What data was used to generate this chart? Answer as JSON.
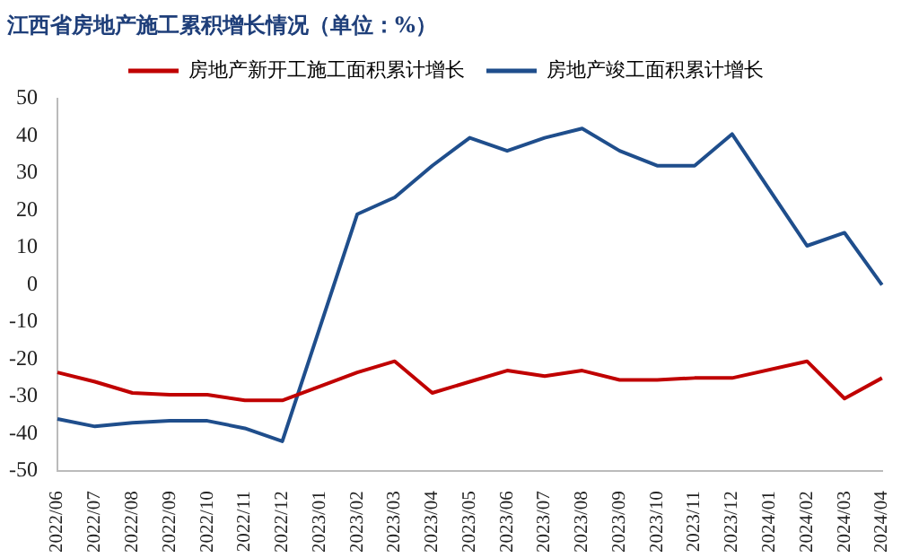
{
  "chart_data": {
    "type": "line",
    "title": "江西省房地产施工累积增长情况（单位：%）",
    "categories": [
      "2022/06",
      "2022/07",
      "2022/08",
      "2022/09",
      "2022/10",
      "2022/11",
      "2022/12",
      "2023/01",
      "2023/02",
      "2023/03",
      "2023/04",
      "2023/05",
      "2023/06",
      "2023/07",
      "2023/08",
      "2023/09",
      "2023/10",
      "2023/11",
      "2023/12",
      "2024/01",
      "2024/02",
      "2024/03",
      "2024/04"
    ],
    "series": [
      {
        "name": "房地产新开工施工面积累计增长",
        "color": "#c00000",
        "values": [
          -23.5,
          -26,
          -29,
          -29.5,
          -29.5,
          -31,
          -31,
          null,
          -23.5,
          -20.5,
          -29,
          -26,
          -23,
          -24.5,
          -23,
          -25.5,
          -25.5,
          -25,
          -25,
          null,
          -20.5,
          -30.5,
          -25
        ]
      },
      {
        "name": "房地产竣工面积累计增长",
        "color": "#1f4e8c",
        "values": [
          -36,
          -38,
          -37,
          -36.5,
          -36.5,
          -38.5,
          -42,
          null,
          19,
          23.5,
          32,
          39.5,
          36,
          39.5,
          42,
          36,
          32,
          32,
          40.5,
          null,
          10.5,
          14,
          0
        ]
      }
    ],
    "ylim": [
      -50,
      50
    ],
    "yticks": [
      -50,
      -40,
      -30,
      -20,
      -10,
      0,
      10,
      20,
      30,
      40,
      50
    ],
    "grid": false,
    "legend": "top",
    "marker": "none",
    "line_style": "solid"
  }
}
